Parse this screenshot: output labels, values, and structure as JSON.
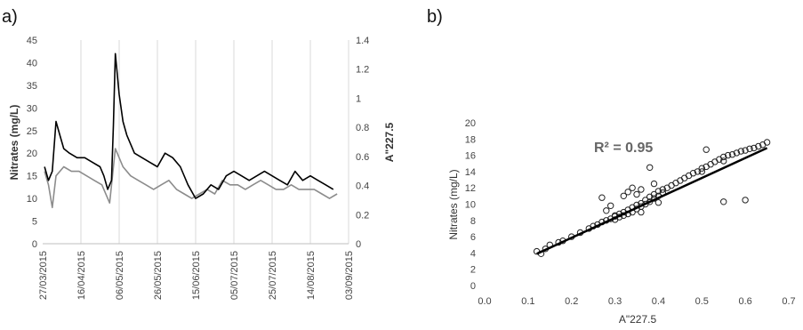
{
  "panels": [
    "a)",
    "b)"
  ],
  "chart_data": [
    {
      "type": "line",
      "xlabel": "",
      "ylabel": "Nitrates (mg/L)",
      "y2label": "A\"227.5",
      "ylim": [
        0,
        45
      ],
      "y2lim": [
        0,
        1.4
      ],
      "yticks": [
        0,
        5,
        10,
        15,
        20,
        25,
        30,
        35,
        40,
        45
      ],
      "y2ticks": [
        "0",
        "0.2",
        "0.4",
        "0.6",
        "0.8",
        "1",
        "1.2",
        "1.4"
      ],
      "xticks": [
        "27/03/2015",
        "16/04/2015",
        "06/05/2015",
        "26/05/2015",
        "15/06/2015",
        "05/07/2015",
        "25/07/2015",
        "14/08/2015",
        "03/09/2015"
      ],
      "grid": "vertical",
      "series": [
        {
          "color": "#000000",
          "x": [
            "2015-03-28",
            "2015-03-30",
            "2015-04-01",
            "2015-04-03",
            "2015-04-05",
            "2015-04-07",
            "2015-04-10",
            "2015-04-14",
            "2015-04-18",
            "2015-04-22",
            "2015-04-26",
            "2015-04-28",
            "2015-04-30",
            "2015-05-02",
            "2015-05-03",
            "2015-05-04",
            "2015-05-06",
            "2015-05-08",
            "2015-05-10",
            "2015-05-14",
            "2015-05-18",
            "2015-05-22",
            "2015-05-26",
            "2015-05-30",
            "2015-06-03",
            "2015-06-07",
            "2015-06-11",
            "2015-06-15",
            "2015-06-19",
            "2015-06-23",
            "2015-06-27",
            "2015-07-01",
            "2015-07-05",
            "2015-07-09",
            "2015-07-13",
            "2015-07-17",
            "2015-07-21",
            "2015-07-25",
            "2015-07-29",
            "2015-08-02",
            "2015-08-06",
            "2015-08-10",
            "2015-08-14",
            "2015-08-18",
            "2015-08-22",
            "2015-08-26"
          ],
          "y": [
            17,
            14,
            16,
            27,
            24,
            21,
            20,
            19,
            19,
            18,
            17,
            15,
            12,
            14,
            26,
            42,
            33,
            27,
            24,
            20,
            19,
            18,
            17,
            20,
            19,
            17,
            13,
            10,
            11,
            13,
            12,
            15,
            16,
            15,
            14,
            15,
            16,
            15,
            14,
            13,
            16,
            14,
            15,
            14,
            13,
            12
          ]
        },
        {
          "color": "#8c8c8c",
          "x": [
            "2015-03-28",
            "2015-03-30",
            "2015-04-01",
            "2015-04-03",
            "2015-04-07",
            "2015-04-11",
            "2015-04-15",
            "2015-04-19",
            "2015-04-23",
            "2015-04-27",
            "2015-05-01",
            "2015-05-04",
            "2015-05-08",
            "2015-05-12",
            "2015-05-16",
            "2015-05-20",
            "2015-05-24",
            "2015-05-28",
            "2015-06-01",
            "2015-06-05",
            "2015-06-09",
            "2015-06-13",
            "2015-06-17",
            "2015-06-21",
            "2015-06-25",
            "2015-06-29",
            "2015-07-03",
            "2015-07-07",
            "2015-07-11",
            "2015-07-15",
            "2015-07-19",
            "2015-07-23",
            "2015-07-27",
            "2015-07-31",
            "2015-08-04",
            "2015-08-08",
            "2015-08-12",
            "2015-08-16",
            "2015-08-20",
            "2015-08-24",
            "2015-08-28"
          ],
          "y": [
            16,
            13,
            8,
            15,
            17,
            16,
            16,
            15,
            14,
            13,
            9,
            21,
            17,
            15,
            14,
            13,
            12,
            13,
            14,
            12,
            11,
            10,
            11,
            12,
            11,
            14,
            13,
            13,
            12,
            13,
            14,
            13,
            12,
            12,
            13,
            12,
            12,
            12,
            11,
            10,
            11
          ]
        }
      ]
    },
    {
      "type": "scatter",
      "xlabel": "A\"227.5",
      "ylabel": "Nitrates (mg/L)",
      "xlim": [
        0,
        0.7
      ],
      "ylim": [
        0,
        20
      ],
      "xticks": [
        "0.0",
        "0.1",
        "0.2",
        "0.3",
        "0.4",
        "0.5",
        "0.6",
        "0.7"
      ],
      "yticks": [
        0,
        2,
        4,
        6,
        8,
        10,
        12,
        14,
        16,
        18,
        20
      ],
      "annotation": "R² = 0.95",
      "trendline": {
        "x": [
          0.12,
          0.65
        ],
        "y": [
          3.9,
          16.9
        ]
      },
      "points": {
        "x": [
          0.12,
          0.13,
          0.14,
          0.15,
          0.17,
          0.18,
          0.2,
          0.22,
          0.24,
          0.25,
          0.26,
          0.27,
          0.28,
          0.29,
          0.3,
          0.3,
          0.31,
          0.31,
          0.32,
          0.32,
          0.33,
          0.33,
          0.34,
          0.34,
          0.35,
          0.35,
          0.36,
          0.36,
          0.37,
          0.37,
          0.38,
          0.38,
          0.39,
          0.39,
          0.4,
          0.4,
          0.41,
          0.42,
          0.43,
          0.44,
          0.45,
          0.46,
          0.47,
          0.48,
          0.49,
          0.5,
          0.5,
          0.51,
          0.52,
          0.53,
          0.54,
          0.55,
          0.55,
          0.56,
          0.57,
          0.58,
          0.59,
          0.6,
          0.61,
          0.62,
          0.63,
          0.64,
          0.65,
          0.32,
          0.33,
          0.34,
          0.35,
          0.36,
          0.38,
          0.29,
          0.27,
          0.39,
          0.41,
          0.51,
          0.55,
          0.6,
          0.28,
          0.3,
          0.36,
          0.4
        ],
        "y": [
          4.2,
          3.9,
          4.5,
          5.0,
          5.3,
          5.5,
          6.0,
          6.5,
          7.0,
          7.3,
          7.5,
          7.8,
          8.0,
          8.2,
          8.6,
          8.1,
          8.8,
          8.4,
          9.0,
          8.6,
          9.3,
          8.8,
          9.6,
          9.0,
          9.9,
          9.4,
          10.1,
          9.7,
          10.5,
          10.0,
          10.9,
          10.3,
          11.2,
          10.7,
          11.6,
          11.0,
          11.8,
          12.0,
          12.3,
          12.6,
          12.9,
          13.2,
          13.5,
          13.8,
          14.0,
          14.4,
          14.0,
          14.6,
          14.9,
          15.2,
          15.5,
          15.8,
          15.3,
          16.0,
          16.1,
          16.3,
          16.5,
          16.6,
          16.8,
          16.9,
          17.1,
          17.3,
          17.6,
          11.0,
          11.5,
          12.0,
          11.2,
          11.8,
          14.5,
          9.8,
          10.8,
          12.5,
          11.4,
          16.7,
          10.3,
          10.5,
          9.2,
          8.5,
          9.0,
          10.2
        ]
      }
    }
  ]
}
